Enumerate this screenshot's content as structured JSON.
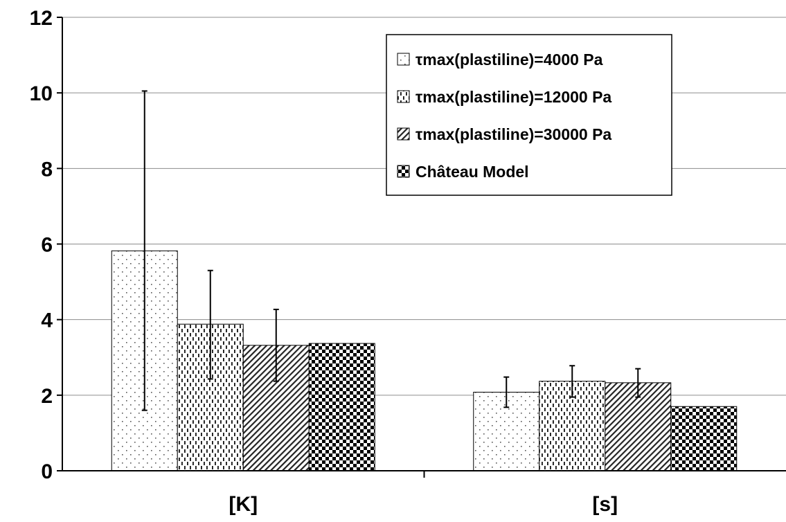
{
  "chart_data": {
    "type": "bar",
    "title": "",
    "xlabel": "",
    "ylabel": "",
    "categories": [
      "[K]",
      "[s]"
    ],
    "ylim": [
      0,
      12
    ],
    "yticks": [
      0,
      2,
      4,
      6,
      8,
      10,
      12
    ],
    "grid": true,
    "legend_position": "top-right",
    "series": [
      {
        "name": "τmax(plastiline)=4000 Pa",
        "pattern": "dots",
        "values": [
          5.82,
          2.08
        ],
        "error_low": [
          1.6,
          1.68
        ],
        "error_high": [
          10.05,
          2.48
        ]
      },
      {
        "name": "τmax(plastiline)=12000 Pa",
        "pattern": "vertical-dashes",
        "values": [
          3.88,
          2.37
        ],
        "error_low": [
          2.43,
          1.95
        ],
        "error_high": [
          5.3,
          2.78
        ]
      },
      {
        "name": "τmax(plastiline)=30000 Pa",
        "pattern": "diagonal-lines",
        "values": [
          3.32,
          2.33
        ],
        "error_low": [
          2.37,
          1.95
        ],
        "error_high": [
          4.27,
          2.7
        ]
      },
      {
        "name": "Château Model",
        "pattern": "checkerboard",
        "values": [
          3.37,
          1.7
        ],
        "error_low": null,
        "error_high": null
      }
    ]
  }
}
